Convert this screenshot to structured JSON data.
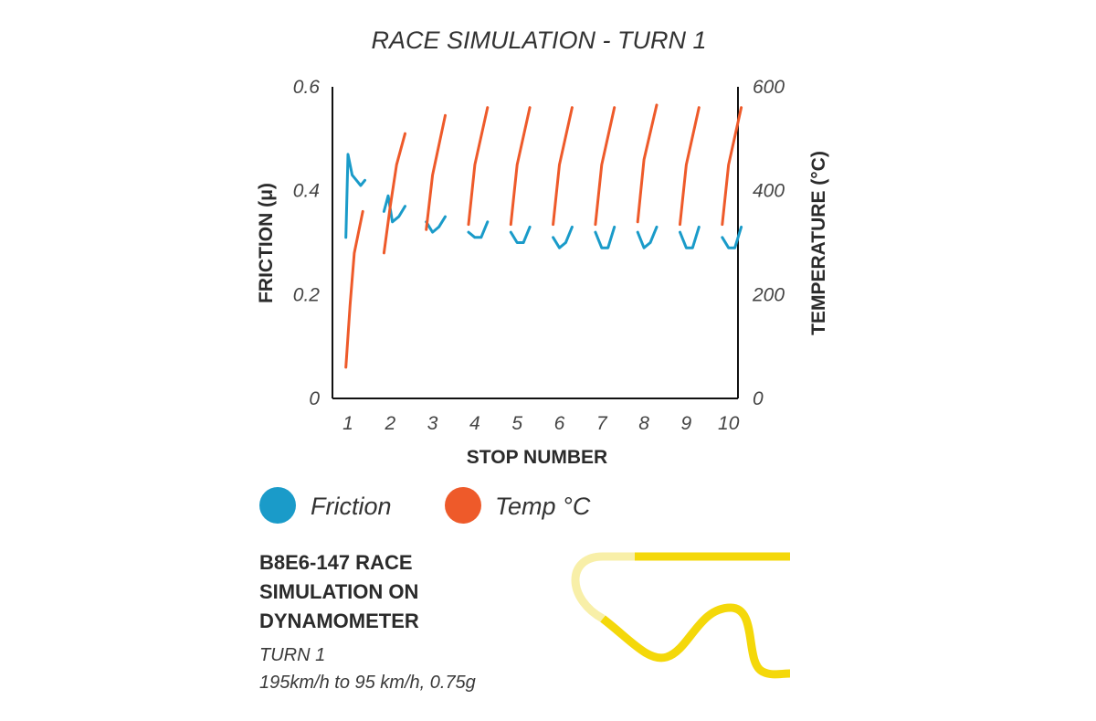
{
  "chart_data": {
    "type": "line",
    "title": "RACE SIMULATION - TURN 1",
    "xlabel": "STOP NUMBER",
    "ylabel": "FRICTION (μ)",
    "y2label": "TEMPERATURE (°C)",
    "categories": [
      "1",
      "2",
      "3",
      "4",
      "5",
      "6",
      "7",
      "8",
      "9",
      "10"
    ],
    "ylim": [
      0,
      0.6
    ],
    "y2lim": [
      0,
      600
    ],
    "yticks": [
      "0",
      "0.2",
      "0.4",
      "0.6"
    ],
    "y2ticks": [
      "0",
      "200",
      "400",
      "600"
    ],
    "series": [
      {
        "name": "Friction",
        "color": "#1a9bc9",
        "stops": [
          {
            "x": [
              0.95,
              1.0,
              1.1,
              1.2,
              1.3,
              1.4
            ],
            "y": [
              0.31,
              0.47,
              0.43,
              0.42,
              0.41,
              0.42
            ]
          },
          {
            "x": [
              1.85,
              1.95,
              2.05,
              2.2,
              2.35
            ],
            "y": [
              0.36,
              0.39,
              0.34,
              0.35,
              0.37
            ]
          },
          {
            "x": [
              2.85,
              3.0,
              3.15,
              3.3
            ],
            "y": [
              0.34,
              0.32,
              0.33,
              0.35
            ]
          },
          {
            "x": [
              3.85,
              4.0,
              4.15,
              4.3
            ],
            "y": [
              0.32,
              0.31,
              0.31,
              0.34
            ]
          },
          {
            "x": [
              4.85,
              5.0,
              5.15,
              5.3
            ],
            "y": [
              0.32,
              0.3,
              0.3,
              0.33
            ]
          },
          {
            "x": [
              5.85,
              6.0,
              6.15,
              6.3
            ],
            "y": [
              0.31,
              0.29,
              0.3,
              0.33
            ]
          },
          {
            "x": [
              6.85,
              7.0,
              7.15,
              7.3
            ],
            "y": [
              0.32,
              0.29,
              0.29,
              0.33
            ]
          },
          {
            "x": [
              7.85,
              8.0,
              8.15,
              8.3
            ],
            "y": [
              0.32,
              0.29,
              0.3,
              0.33
            ]
          },
          {
            "x": [
              8.85,
              9.0,
              9.15,
              9.3
            ],
            "y": [
              0.32,
              0.29,
              0.29,
              0.33
            ]
          },
          {
            "x": [
              9.85,
              10.0,
              10.15,
              10.3
            ],
            "y": [
              0.31,
              0.29,
              0.29,
              0.33
            ]
          }
        ]
      },
      {
        "name": "Temp °C",
        "color": "#ee5a2a",
        "stops": [
          {
            "x": [
              0.95,
              1.05,
              1.15,
              1.35
            ],
            "y": [
              60,
              180,
              280,
              360
            ]
          },
          {
            "x": [
              1.85,
              2.0,
              2.15,
              2.35
            ],
            "y": [
              280,
              370,
              450,
              510
            ]
          },
          {
            "x": [
              2.85,
              3.0,
              3.3
            ],
            "y": [
              325,
              430,
              545
            ]
          },
          {
            "x": [
              3.85,
              4.0,
              4.3
            ],
            "y": [
              335,
              450,
              560
            ]
          },
          {
            "x": [
              4.85,
              5.0,
              5.3
            ],
            "y": [
              335,
              450,
              560
            ]
          },
          {
            "x": [
              5.85,
              6.0,
              6.3
            ],
            "y": [
              335,
              450,
              560
            ]
          },
          {
            "x": [
              6.85,
              7.0,
              7.3
            ],
            "y": [
              335,
              450,
              560
            ]
          },
          {
            "x": [
              7.85,
              8.0,
              8.3
            ],
            "y": [
              340,
              460,
              565
            ]
          },
          {
            "x": [
              8.85,
              9.0,
              9.3
            ],
            "y": [
              335,
              450,
              560
            ]
          },
          {
            "x": [
              9.85,
              10.0,
              10.3
            ],
            "y": [
              335,
              450,
              560
            ]
          }
        ]
      }
    ],
    "legend": [
      {
        "label": "Friction",
        "color": "#1a9bc9"
      },
      {
        "label": "Temp °C",
        "color": "#ee5a2a"
      }
    ]
  },
  "caption": {
    "title": "B8E6-147 RACE SIMULATION ON DYNAMOMETER",
    "subtitle": "TURN 1",
    "detail": "195km/h to 95 km/h, 0.75g"
  },
  "colors": {
    "track_main": "#f4d80a",
    "track_faded": "#f8efa8"
  }
}
